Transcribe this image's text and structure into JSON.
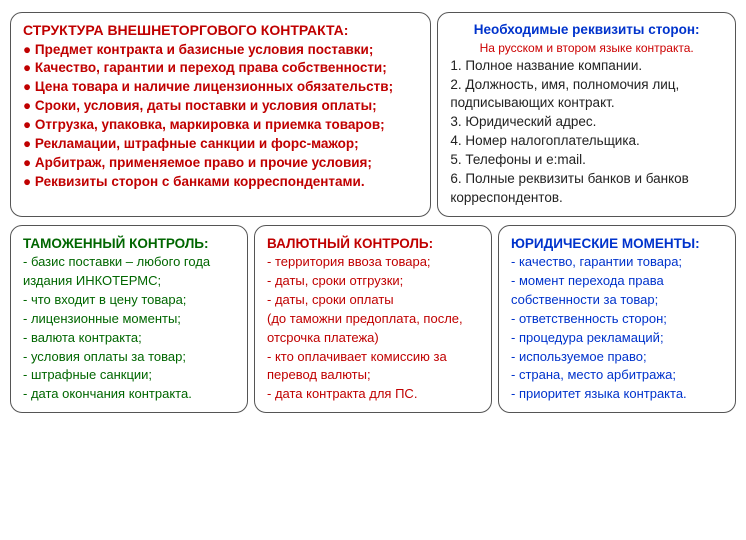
{
  "main": {
    "title": "СТРУКТУРА ВНЕШНЕТОРГОВОГО КОНТРАКТА:",
    "items": [
      "● Предмет контракта и базисные условия поставки;",
      "● Качество, гарантии и переход права собственности;",
      "● Цена товара и наличие лицензионных обязательств;",
      "● Сроки, условия, даты поставки и условия оплаты;",
      "● Отгрузка, упаковка, маркировка и приемка товаров;",
      "● Рекламации, штрафные санкции и форс-мажор;",
      "● Арбитраж, применяемое право и прочие условия;",
      "● Реквизиты сторон с банками корреспондентами."
    ]
  },
  "req": {
    "title": "Необходимые реквизиты сторон:",
    "subtitle": "На русском и втором языке контракта.",
    "items": [
      "1. Полное название компании.",
      "2. Должность, имя, полномочия лиц, подписывающих контракт.",
      "3. Юридический адрес.",
      "4. Номер налогоплательщика.",
      "5. Телефоны и e:mail.",
      "6. Полные реквизиты банков и банков корреспондентов."
    ]
  },
  "customs": {
    "title": "ТАМОЖЕННЫЙ КОНТРОЛЬ:",
    "items": [
      "- базис поставки – любого года издания ИНКОТЕРМС;",
      "- что входит в цену товара;",
      "- лицензионные моменты;",
      "- валюта контракта;",
      "- условия оплаты за товар;",
      "- штрафные санкции;",
      "- дата окончания контракта."
    ]
  },
  "currency": {
    "title": "ВАЛЮТНЫЙ КОНТРОЛЬ:",
    "items": [
      "- территория ввоза товара;",
      "- даты, сроки отгрузки;",
      "- даты, сроки оплаты",
      "(до таможни предоплата, после, отсрочка платежа)",
      "- кто оплачивает комиссию за перевод валюты;",
      "- дата контракта для ПС."
    ]
  },
  "legal": {
    "title": "ЮРИДИЧЕСКИЕ МОМЕНТЫ:",
    "items": [
      "- качество, гарантии товара;",
      "- момент перехода права собственности за товар;",
      "- ответственность сторон;",
      "- процедура рекламаций;",
      "- используемое право;",
      "- страна, место арбитража;",
      "- приоритет языка контракта."
    ]
  },
  "colors": {
    "red": "#c00000",
    "blue": "#0033cc",
    "green": "#006600",
    "text": "#222222",
    "border": "#555555",
    "bg": "#ffffff"
  }
}
